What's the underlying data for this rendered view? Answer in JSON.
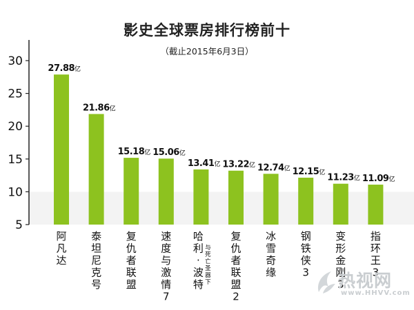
{
  "chart_data": {
    "type": "bar",
    "title": "影史全球票房排行榜前十",
    "subtitle": "（截止2015年6月3日）",
    "categories": [
      "阿凡达",
      "泰坦尼克号",
      "复仇者联盟",
      "速度与激情7",
      "哈利·波特",
      "复仇者联盟2",
      "冰雪奇缘",
      "钢铁侠3",
      "变形金刚3",
      "指环王3"
    ],
    "category_sublabels": [
      "",
      "",
      "",
      "",
      "与死亡圣器下",
      "",
      "",
      "",
      "",
      ""
    ],
    "values": [
      27.88,
      21.86,
      15.18,
      15.06,
      13.41,
      13.22,
      12.74,
      12.15,
      11.23,
      11.09
    ],
    "value_labels": [
      "27.88",
      "21.86",
      "15.18",
      "15.06",
      "13.41",
      "13.22",
      "12.74",
      "12.15",
      "11.23",
      "11.09"
    ],
    "value_unit": "亿",
    "ylim": [
      5,
      30
    ],
    "yticks": [
      "30",
      "25",
      "20",
      "15",
      "10",
      "5"
    ],
    "grid": false,
    "colors": {
      "bar": "#8dc21f",
      "axis": "#222222",
      "band": "#f3f3f3",
      "text": "#111111"
    }
  },
  "watermark": {
    "brand": "热视网",
    "url": "www.HHVV.com"
  }
}
